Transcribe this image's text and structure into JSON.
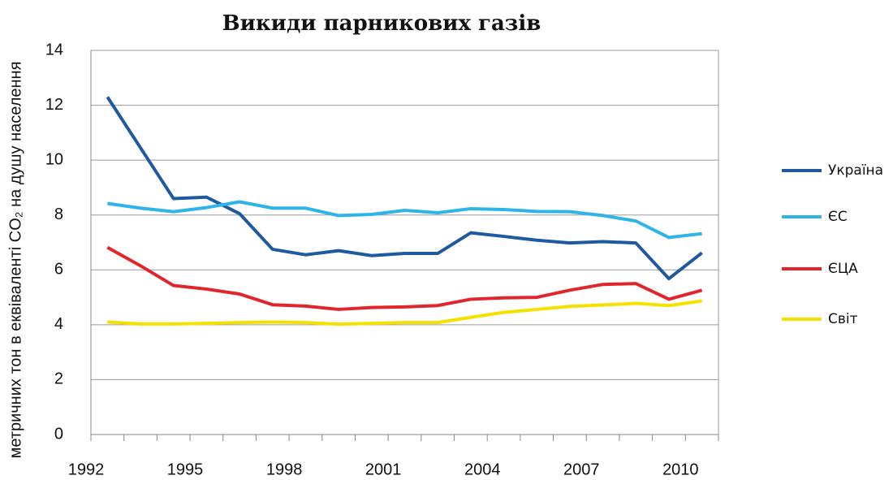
{
  "chart_data": {
    "type": "line",
    "title": "Викиди парникових газів",
    "y_label": "метричних тон в еквіваленті CO₂  на душу населення",
    "categories": [
      "1992",
      null,
      null,
      "1995",
      null,
      null,
      "1998",
      null,
      null,
      "2001",
      null,
      null,
      "2004",
      null,
      null,
      "2007",
      null,
      null,
      "2010"
    ],
    "series": [
      {
        "name": "Україна",
        "color": "#1f5aa0",
        "values": [
          12.3,
          10.45,
          8.6,
          8.65,
          8.05,
          6.75,
          6.55,
          6.7,
          6.52,
          6.6,
          6.6,
          7.35,
          7.22,
          7.08,
          6.98,
          7.03,
          6.98,
          5.68,
          6.62
        ]
      },
      {
        "name": "ЄС",
        "color": "#2eb4e6",
        "values": [
          8.42,
          8.25,
          8.12,
          8.27,
          8.48,
          8.25,
          8.25,
          7.98,
          8.02,
          8.17,
          8.08,
          8.23,
          8.2,
          8.13,
          8.12,
          7.98,
          7.78,
          7.18,
          7.32
        ]
      },
      {
        "name": "ЄЦА",
        "color": "#e0262c",
        "values": [
          6.82,
          6.15,
          5.43,
          5.3,
          5.12,
          4.73,
          4.68,
          4.56,
          4.63,
          4.65,
          4.7,
          4.93,
          4.98,
          5.0,
          5.26,
          5.47,
          5.5,
          4.93,
          5.26
        ]
      },
      {
        "name": "Світ",
        "color": "#f5e100",
        "values": [
          4.1,
          4.03,
          4.03,
          4.05,
          4.08,
          4.1,
          4.08,
          4.02,
          4.05,
          4.08,
          4.08,
          4.27,
          4.45,
          4.56,
          4.67,
          4.72,
          4.78,
          4.7,
          4.87
        ]
      }
    ],
    "ylim": [
      0,
      14
    ],
    "yticks": [
      0,
      2,
      4,
      6,
      8,
      10,
      12,
      14
    ],
    "grid": true,
    "legend": "right"
  }
}
